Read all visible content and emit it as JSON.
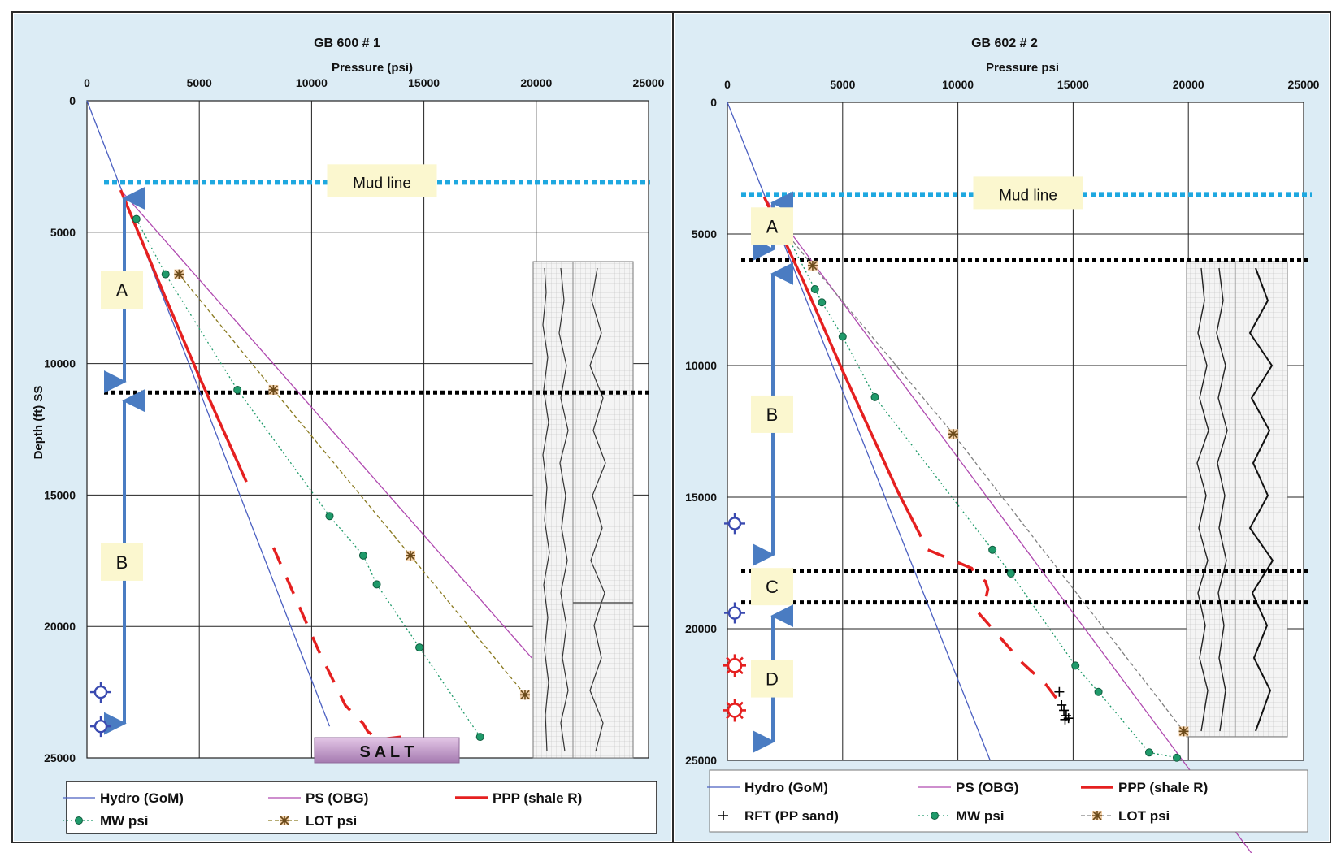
{
  "chart_data": [
    {
      "type": "line",
      "title": "GB 600 # 1",
      "xlabel": "Pressure (psi)",
      "ylabel": "Depth (ft) SS",
      "xlim": [
        0,
        25000
      ],
      "ylim": [
        0,
        25000
      ],
      "y_inverted": true,
      "x_axis_position": "top",
      "grid": true,
      "x_ticks": [
        "0",
        "5000",
        "10000",
        "15000",
        "20000",
        "25000"
      ],
      "y_ticks": [
        "0",
        "5000",
        "10000",
        "15000",
        "20000",
        "25000"
      ],
      "series": [
        {
          "name": "Hydro (GoM)",
          "color": "#4a5fc1",
          "style": "solid",
          "points": [
            [
              0,
              0
            ],
            [
              10800,
              23800
            ]
          ]
        },
        {
          "name": "PS (OBG)",
          "color": "#b04ab0",
          "style": "solid",
          "points": [
            [
              1500,
              3400
            ],
            [
              19800,
              21200
            ]
          ]
        },
        {
          "name": "PPP (shale R)",
          "color": "#e52020",
          "style": "solid",
          "points": [
            [
              1500,
              3400
            ],
            [
              3500,
              7500
            ],
            [
              5000,
              10500
            ],
            [
              7100,
              14500
            ]
          ]
        },
        {
          "name": "PPP (shale R)",
          "color": "#e52020",
          "style": "dashed",
          "points": [
            [
              8300,
              17000
            ],
            [
              10300,
              20900
            ],
            [
              11500,
              23000
            ],
            [
              12300,
              23700
            ],
            [
              12500,
              24000
            ],
            [
              13000,
              24300
            ],
            [
              14000,
              24200
            ]
          ]
        },
        {
          "name": "MW psi",
          "color": "#1f9a6a",
          "style": "dotted",
          "marker": "circle",
          "points": [
            [
              2200,
              4500
            ],
            [
              3500,
              6600
            ],
            [
              6700,
              11000
            ],
            [
              10800,
              15800
            ],
            [
              12300,
              17300
            ],
            [
              12900,
              18400
            ],
            [
              14800,
              20800
            ],
            [
              17500,
              24200
            ]
          ]
        },
        {
          "name": "LOT psi",
          "color": "#8a7a20",
          "style": "dashed",
          "marker": "star",
          "points": [
            [
              4100,
              6600
            ],
            [
              8300,
              11000
            ],
            [
              14400,
              17300
            ],
            [
              19500,
              22600
            ]
          ]
        }
      ],
      "horizontal_lines": [
        {
          "label": "Mud line",
          "y": 3100,
          "style": "dotted-cyan"
        },
        {
          "y": 11100,
          "style": "dotted-black"
        }
      ],
      "zones": [
        {
          "label": "A",
          "from": 3400,
          "to": 11000
        },
        {
          "label": "B",
          "from": 11100,
          "to": 24000
        }
      ],
      "annotations": [
        {
          "label": "SALT",
          "text": "S A L T"
        }
      ],
      "symbols": [
        {
          "kind": "well-marker",
          "color": "#3a4ab0",
          "y": 22500
        },
        {
          "kind": "well-marker",
          "color": "#3a4ab0",
          "y": 23800
        }
      ],
      "legend": {
        "placement": "bottom",
        "entries": [
          "Hydro (GoM)",
          "PS (OBG)",
          "PPP (shale R)",
          "MW psi",
          "LOT psi"
        ]
      }
    },
    {
      "type": "line",
      "title": "GB 602 # 2",
      "xlabel": "Pressure psi",
      "ylabel": "",
      "xlim": [
        0,
        25000
      ],
      "ylim": [
        0,
        25000
      ],
      "y_inverted": true,
      "x_axis_position": "top",
      "grid": true,
      "x_ticks": [
        "0",
        "5000",
        "10000",
        "15000",
        "20000",
        "25000"
      ],
      "y_ticks": [
        "0",
        "5000",
        "10000",
        "15000",
        "20000",
        "25000"
      ],
      "series": [
        {
          "name": "Hydro (GoM)",
          "color": "#4a5fc1",
          "style": "solid",
          "points": [
            [
              0,
              0
            ],
            [
              11400,
              25000
            ]
          ]
        },
        {
          "name": "PS (OBG)",
          "color": "#b04ab0",
          "style": "solid",
          "points": [
            [
              1600,
              3600
            ],
            [
              22800,
              28600
            ]
          ]
        },
        {
          "name": "PPP (shale R)",
          "color": "#e52020",
          "style": "solid",
          "points": [
            [
              1600,
              3600
            ],
            [
              3300,
              6800
            ],
            [
              5000,
              10200
            ],
            [
              7400,
              14800
            ],
            [
              8400,
              16500
            ]
          ]
        },
        {
          "name": "PPP (shale R)",
          "color": "#e52020",
          "style": "dashed",
          "points": [
            [
              8700,
              17000
            ],
            [
              10600,
              17700
            ],
            [
              10800,
              18000
            ],
            [
              11200,
              18200
            ],
            [
              11300,
              18500
            ],
            [
              11200,
              18900
            ]
          ]
        },
        {
          "name": "PPP (shale R)",
          "color": "#e52020",
          "style": "dashed",
          "points": [
            [
              10900,
              19400
            ],
            [
              12800,
              21300
            ],
            [
              13800,
              22100
            ],
            [
              14500,
              22900
            ]
          ]
        },
        {
          "name": "RFT (PP sand)",
          "color": "#000000",
          "style": "none",
          "marker": "plus",
          "points": [
            [
              14400,
              22400
            ],
            [
              14500,
              22900
            ],
            [
              14600,
              23100
            ],
            [
              14700,
              23300
            ],
            [
              14800,
              23400
            ],
            [
              14650,
              23450
            ]
          ]
        },
        {
          "name": "MW psi",
          "color": "#1f9a6a",
          "style": "dotted",
          "marker": "circle",
          "points": [
            [
              2500,
              4900
            ],
            [
              3800,
              7100
            ],
            [
              4100,
              7600
            ],
            [
              5000,
              8900
            ],
            [
              6400,
              11200
            ],
            [
              11500,
              17000
            ],
            [
              12300,
              17900
            ],
            [
              15100,
              21400
            ],
            [
              16100,
              22400
            ],
            [
              18300,
              24700
            ],
            [
              19500,
              24900
            ]
          ]
        },
        {
          "name": "LOT psi",
          "color": "#808080",
          "style": "dashed",
          "marker": "star",
          "points": [
            [
              2500,
              4900
            ],
            [
              3700,
              6200
            ],
            [
              9800,
              12600
            ],
            [
              19800,
              23900
            ]
          ]
        }
      ],
      "horizontal_lines": [
        {
          "label": "Mud line",
          "y": 3500,
          "style": "dotted-cyan"
        },
        {
          "y": 6000,
          "style": "dotted-black"
        },
        {
          "y": 17800,
          "style": "dotted-black"
        },
        {
          "y": 19000,
          "style": "dotted-black"
        }
      ],
      "zones": [
        {
          "label": "A",
          "from": 3500,
          "to": 5900
        },
        {
          "label": "B",
          "from": 6200,
          "to": 17500
        },
        {
          "label": "C",
          "from": 17800,
          "to": 19000
        },
        {
          "label": "D",
          "from": 19200,
          "to": 24600
        }
      ],
      "symbols": [
        {
          "kind": "well-marker",
          "color": "#3a4ab0",
          "y": 16000
        },
        {
          "kind": "well-marker",
          "color": "#3a4ab0",
          "y": 19400
        },
        {
          "kind": "gas-marker",
          "color": "#e52020",
          "y": 21400
        },
        {
          "kind": "gas-marker",
          "color": "#e52020",
          "y": 23100
        }
      ],
      "legend": {
        "placement": "bottom",
        "entries": [
          "Hydro (GoM)",
          "PS (OBG)",
          "PPP (shale R)",
          "RFT (PP sand)",
          "MW psi",
          "LOT psi"
        ]
      }
    }
  ]
}
